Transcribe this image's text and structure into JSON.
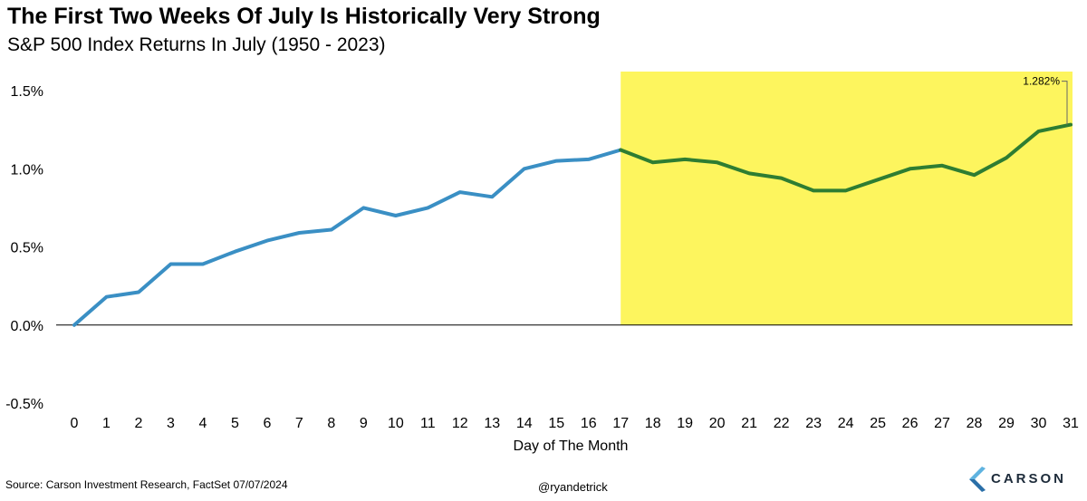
{
  "header": {
    "title": "The First Two Weeks Of July Is Historically Very Strong",
    "subtitle": "S&P 500 Index Returns In July (1950 - 2023)"
  },
  "footer": {
    "source": "Source: Carson Investment Research, FactSet 07/07/2024",
    "handle": "@ryandetrick",
    "logo_text": "CARSON",
    "logo_icon": "carson-chevron-logo"
  },
  "colors": {
    "line_blue": "#3a8fc4",
    "line_green": "#2e7d32",
    "highlight": "#fdf55e",
    "logo_light": "#5fb3e0",
    "logo_dark": "#2a6fa8"
  },
  "chart_data": {
    "type": "line",
    "title": "The First Two Weeks Of July Is Historically Very Strong",
    "subtitle": "S&P 500 Index Returns In July (1950 - 2023)",
    "xlabel": "Day of The Month",
    "ylabel": "",
    "x": [
      0,
      1,
      2,
      3,
      4,
      5,
      6,
      7,
      8,
      9,
      10,
      11,
      12,
      13,
      14,
      15,
      16,
      17,
      18,
      19,
      20,
      21,
      22,
      23,
      24,
      25,
      26,
      27,
      28,
      29,
      30,
      31
    ],
    "y": [
      0.0,
      0.18,
      0.21,
      0.39,
      0.39,
      0.47,
      0.54,
      0.59,
      0.61,
      0.75,
      0.7,
      0.75,
      0.85,
      0.82,
      1.0,
      1.05,
      1.06,
      1.12,
      1.04,
      1.06,
      1.04,
      0.97,
      0.94,
      0.86,
      0.86,
      0.93,
      1.0,
      1.02,
      0.96,
      1.07,
      1.24,
      1.282
    ],
    "ylim": [
      -0.5,
      1.5
    ],
    "yticks": [
      -0.5,
      0.0,
      0.5,
      1.0,
      1.5
    ],
    "ytick_labels": [
      "-0.5%",
      "0.0%",
      "0.5%",
      "1.0%",
      "1.5%"
    ],
    "xtick_labels": [
      "0",
      "1",
      "2",
      "3",
      "4",
      "5",
      "6",
      "7",
      "8",
      "9",
      "10",
      "11",
      "12",
      "13",
      "14",
      "15",
      "16",
      "17",
      "18",
      "19",
      "20",
      "21",
      "22",
      "23",
      "24",
      "25",
      "26",
      "27",
      "28",
      "29",
      "30",
      "31"
    ],
    "highlight_range": [
      17,
      31
    ],
    "grid": false,
    "annotation": {
      "x": 31,
      "y": 1.282,
      "text": "1.282%"
    }
  }
}
